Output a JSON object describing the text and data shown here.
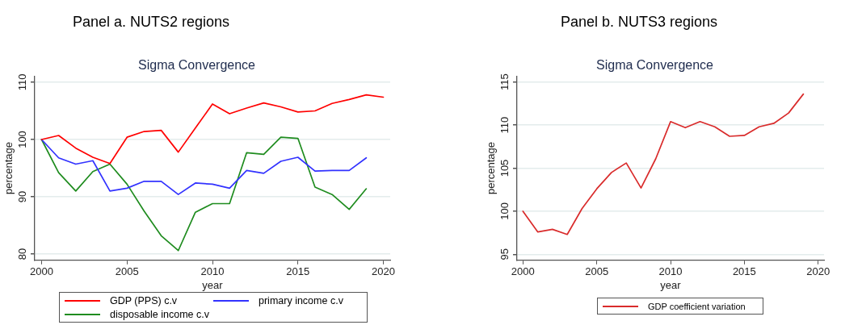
{
  "chart_data": [
    {
      "type": "line",
      "title": "Panel a. NUTS2 regions",
      "subtitle": "Sigma Convergence",
      "xlabel": "year",
      "ylabel": "percentage",
      "x": [
        2000,
        2001,
        2002,
        2003,
        2004,
        2005,
        2006,
        2007,
        2008,
        2009,
        2010,
        2011,
        2012,
        2013,
        2014,
        2015,
        2016,
        2017,
        2018,
        2019,
        2020
      ],
      "xlim": [
        1999.6,
        2020.4
      ],
      "xticks": [
        2000,
        2005,
        2010,
        2015,
        2020
      ],
      "ylim": [
        78.9,
        111.1
      ],
      "yticks": [
        80,
        90,
        100,
        110
      ],
      "grid": "y",
      "legend": "bottom",
      "series": [
        {
          "name": "GDP (PPS) c.v",
          "color": "#ff0000",
          "values": [
            100,
            100.7,
            98.5,
            96.9,
            95.8,
            100.4,
            101.4,
            101.6,
            97.8,
            102.0,
            106.2,
            104.5,
            105.5,
            106.4,
            105.7,
            104.8,
            105.0,
            106.3,
            107.0,
            107.8,
            107.4
          ]
        },
        {
          "name": "primary income c.v",
          "color": "#3232ff",
          "values": [
            100,
            96.8,
            95.7,
            96.3,
            91.0,
            91.5,
            92.7,
            92.7,
            90.4,
            92.4,
            92.2,
            91.5,
            94.6,
            94.1,
            96.2,
            96.9,
            94.5,
            94.6,
            94.6,
            96.8,
            null
          ]
        },
        {
          "name": "disposable income c.v",
          "color": "#1f8c1f",
          "values": [
            100,
            94.2,
            91.0,
            94.4,
            95.7,
            92.2,
            87.5,
            83.2,
            80.6,
            87.3,
            88.8,
            88.8,
            97.7,
            97.4,
            100.4,
            100.2,
            91.7,
            90.4,
            87.8,
            91.4,
            null
          ]
        }
      ]
    },
    {
      "type": "line",
      "title": "Panel b. NUTS3 regions",
      "subtitle": "Sigma Convergence",
      "xlabel": "year",
      "ylabel": "percentage",
      "x": [
        2000,
        2001,
        2002,
        2003,
        2004,
        2005,
        2006,
        2007,
        2008,
        2009,
        2010,
        2011,
        2012,
        2013,
        2014,
        2015,
        2016,
        2017,
        2018,
        2019
      ],
      "xlim": [
        1999.6,
        2020.4
      ],
      "xticks": [
        2000,
        2005,
        2010,
        2015,
        2020
      ],
      "ylim": [
        94.3,
        115.7
      ],
      "yticks": [
        95,
        100,
        105,
        110,
        115
      ],
      "grid": "y",
      "legend": "bottom",
      "series": [
        {
          "name": "GDP coefficient variation",
          "color": "#d92b2b",
          "values": [
            100,
            97.6,
            97.9,
            97.3,
            100.3,
            102.6,
            104.5,
            105.6,
            102.7,
            106.1,
            110.4,
            109.7,
            110.4,
            109.8,
            108.7,
            108.8,
            109.8,
            110.2,
            111.4,
            113.6
          ]
        }
      ]
    }
  ]
}
